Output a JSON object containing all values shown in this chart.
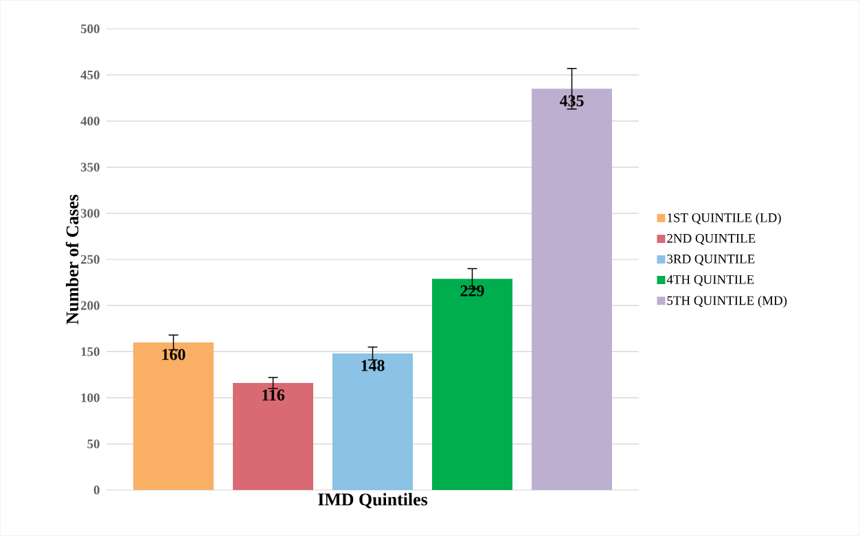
{
  "chart_data": {
    "type": "bar",
    "xlabel": "IMD Quintiles",
    "ylabel": "Number of Cases",
    "categories": [
      null
    ],
    "series": [
      {
        "name": "1ST QUINTILE (LD)",
        "color": "#f9b066",
        "values": [
          160
        ],
        "errors": [
          8
        ],
        "value_labels": [
          "160"
        ]
      },
      {
        "name": "2ND QUINTILE",
        "color": "#d96a74",
        "values": [
          116
        ],
        "errors": [
          6
        ],
        "value_labels": [
          "116"
        ]
      },
      {
        "name": "3RD QUINTILE",
        "color": "#8bc2e5",
        "values": [
          148
        ],
        "errors": [
          7
        ],
        "value_labels": [
          "148"
        ]
      },
      {
        "name": "4TH QUINTILE",
        "color": "#00ae4e",
        "values": [
          229
        ],
        "errors": [
          11
        ],
        "value_labels": [
          "229"
        ]
      },
      {
        "name": "5TH QUINTILE (MD)",
        "color": "#bdafd0",
        "values": [
          435
        ],
        "errors": [
          22
        ],
        "value_labels": [
          "435"
        ]
      }
    ],
    "ylim": [
      0,
      500
    ],
    "yticks": [
      0,
      50,
      100,
      150,
      200,
      250,
      300,
      350,
      400,
      450,
      500
    ],
    "grid": "y",
    "legend": "right"
  }
}
